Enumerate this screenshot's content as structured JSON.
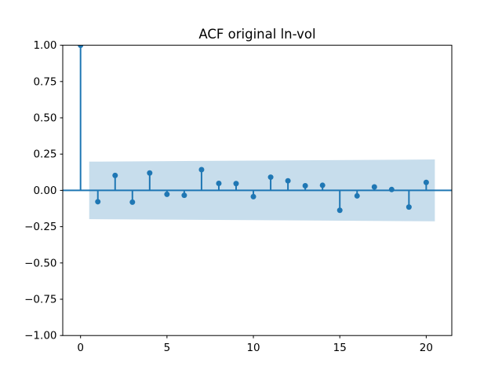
{
  "chart_data": {
    "type": "stem",
    "title": "ACF original ln-vol",
    "xlabel": "",
    "ylabel": "",
    "xlim": [
      -1.03,
      21.48
    ],
    "ylim": [
      -1.0,
      1.0
    ],
    "grid": false,
    "legend": null,
    "x_ticks": [
      0,
      5,
      10,
      15,
      20
    ],
    "x_tick_labels": [
      "0",
      "5",
      "10",
      "15",
      "20"
    ],
    "y_ticks": [
      1.0,
      0.75,
      0.5,
      0.25,
      0.0,
      -0.25,
      -0.5,
      -0.75,
      -1.0
    ],
    "y_tick_labels": [
      "1.00",
      "0.75",
      "0.50",
      "0.25",
      "0.00",
      "−0.25",
      "−0.50",
      "−0.75",
      "−1.00"
    ],
    "lags": [
      0,
      1,
      2,
      3,
      4,
      5,
      6,
      7,
      8,
      9,
      10,
      11,
      12,
      13,
      14,
      15,
      16,
      17,
      18,
      19,
      20
    ],
    "acf_values": [
      1.0,
      -0.078,
      0.103,
      -0.081,
      0.12,
      -0.027,
      -0.034,
      0.143,
      0.048,
      0.047,
      -0.043,
      0.091,
      0.066,
      0.032,
      0.035,
      -0.137,
      -0.038,
      0.024,
      0.006,
      -0.115,
      0.055
    ],
    "zero_line": 0.0,
    "confidence_band": {
      "start_lag": 0.5,
      "end_lag": 20.5,
      "upper_at_start": 0.198,
      "upper_at_end": 0.213,
      "lower_at_start": -0.198,
      "lower_at_end": -0.213
    },
    "colors": {
      "stem": "#1f77b4",
      "marker": "#1f77b4",
      "zero_line": "#1f77b4",
      "band": "rgba(31,119,180,0.25)",
      "axis": "#000000",
      "text": "#000000",
      "background": "#ffffff"
    }
  }
}
